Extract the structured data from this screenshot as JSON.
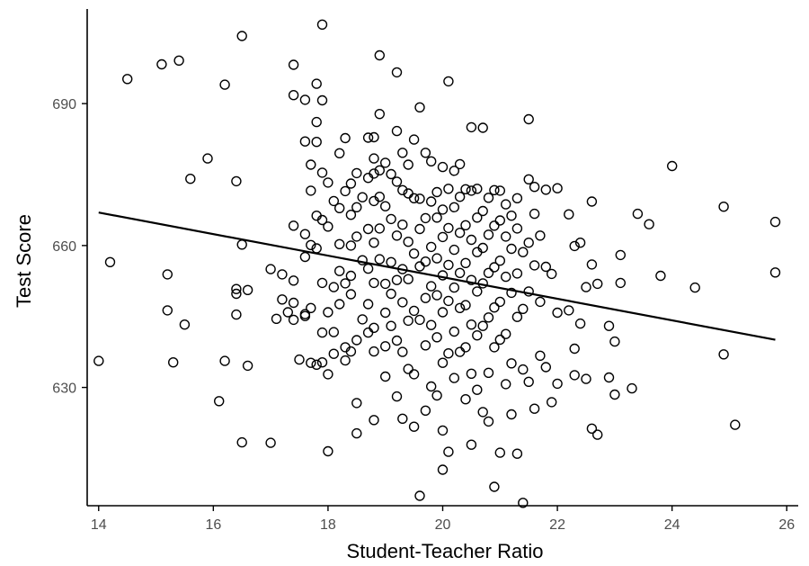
{
  "chart_data": {
    "type": "scatter",
    "xlabel": "Student-Teacher Ratio",
    "ylabel": "Test Score",
    "xlim": [
      13.8,
      26.2
    ],
    "ylim": [
      605,
      710
    ],
    "x_ticks": [
      14,
      16,
      18,
      20,
      22,
      24,
      26
    ],
    "y_ticks": [
      630,
      660,
      690
    ],
    "grid": false,
    "legend": "none",
    "colors": {
      "point_stroke": "#000000",
      "point_fill": "none",
      "line": "#000000",
      "axis": "#000000",
      "tick_label": "#4d4d4d"
    },
    "regression_line": {
      "intercept": 698.9,
      "slope": -2.28,
      "x_range": [
        14.0,
        25.8
      ]
    },
    "points": [
      [
        14.0,
        635.6
      ],
      [
        14.2,
        656.5
      ],
      [
        14.5,
        695.2
      ],
      [
        15.1,
        698.3
      ],
      [
        15.2,
        646.3
      ],
      [
        15.2,
        653.9
      ],
      [
        15.3,
        635.3
      ],
      [
        15.4,
        699.1
      ],
      [
        15.5,
        643.3
      ],
      [
        15.6,
        674.1
      ],
      [
        15.9,
        678.4
      ],
      [
        16.1,
        627.1
      ],
      [
        16.2,
        694.0
      ],
      [
        16.2,
        635.6
      ],
      [
        16.4,
        673.6
      ],
      [
        16.4,
        650.8
      ],
      [
        16.4,
        649.8
      ],
      [
        16.4,
        645.4
      ],
      [
        16.5,
        704.3
      ],
      [
        16.5,
        660.2
      ],
      [
        16.5,
        618.4
      ],
      [
        16.6,
        650.6
      ],
      [
        16.6,
        634.6
      ],
      [
        17.0,
        655.0
      ],
      [
        17.0,
        618.3
      ],
      [
        17.1,
        644.5
      ],
      [
        17.2,
        648.6
      ],
      [
        17.2,
        653.9
      ],
      [
        17.3,
        645.9
      ],
      [
        17.4,
        698.2
      ],
      [
        17.4,
        691.8
      ],
      [
        17.4,
        664.2
      ],
      [
        17.4,
        652.6
      ],
      [
        17.4,
        647.9
      ],
      [
        17.4,
        644.3
      ],
      [
        17.5,
        635.9
      ],
      [
        17.6,
        645.5
      ],
      [
        17.6,
        645.1
      ],
      [
        17.6,
        690.8
      ],
      [
        17.6,
        682.0
      ],
      [
        17.6,
        662.4
      ],
      [
        17.6,
        657.6
      ],
      [
        17.7,
        677.1
      ],
      [
        17.7,
        671.6
      ],
      [
        17.7,
        660.1
      ],
      [
        17.7,
        646.8
      ],
      [
        17.7,
        635.2
      ],
      [
        17.8,
        694.2
      ],
      [
        17.8,
        686.1
      ],
      [
        17.8,
        681.9
      ],
      [
        17.8,
        666.3
      ],
      [
        17.8,
        659.4
      ],
      [
        17.8,
        634.8
      ],
      [
        17.9,
        706.7
      ],
      [
        17.9,
        690.7
      ],
      [
        17.9,
        675.4
      ],
      [
        17.9,
        665.4
      ],
      [
        17.9,
        652.1
      ],
      [
        17.9,
        641.6
      ],
      [
        17.9,
        635.3
      ],
      [
        18.0,
        673.3
      ],
      [
        18.0,
        664.0
      ],
      [
        18.0,
        645.9
      ],
      [
        18.0,
        632.8
      ],
      [
        18.0,
        616.5
      ],
      [
        18.1,
        669.4
      ],
      [
        18.1,
        651.2
      ],
      [
        18.1,
        641.7
      ],
      [
        18.1,
        637.1
      ],
      [
        18.2,
        679.5
      ],
      [
        18.2,
        667.9
      ],
      [
        18.2,
        660.3
      ],
      [
        18.2,
        654.6
      ],
      [
        18.2,
        647.6
      ],
      [
        18.3,
        682.7
      ],
      [
        18.3,
        671.5
      ],
      [
        18.3,
        652.0
      ],
      [
        18.3,
        638.5
      ],
      [
        18.3,
        635.7
      ],
      [
        18.4,
        673.1
      ],
      [
        18.4,
        666.5
      ],
      [
        18.4,
        660.0
      ],
      [
        18.4,
        653.6
      ],
      [
        18.4,
        649.7
      ],
      [
        18.4,
        637.6
      ],
      [
        18.5,
        675.3
      ],
      [
        18.5,
        661.9
      ],
      [
        18.5,
        626.7
      ],
      [
        18.5,
        620.3
      ],
      [
        18.5,
        640.0
      ],
      [
        18.5,
        668.1
      ],
      [
        18.6,
        656.9
      ],
      [
        18.6,
        644.4
      ],
      [
        18.6,
        670.2
      ],
      [
        18.7,
        682.8
      ],
      [
        18.7,
        674.3
      ],
      [
        18.7,
        663.5
      ],
      [
        18.7,
        655.1
      ],
      [
        18.7,
        647.6
      ],
      [
        18.7,
        641.6
      ],
      [
        18.8,
        682.9
      ],
      [
        18.8,
        678.4
      ],
      [
        18.8,
        675.2
      ],
      [
        18.8,
        669.4
      ],
      [
        18.8,
        660.6
      ],
      [
        18.8,
        652.1
      ],
      [
        18.8,
        642.6
      ],
      [
        18.8,
        637.6
      ],
      [
        18.8,
        623.1
      ],
      [
        18.9,
        700.2
      ],
      [
        18.9,
        687.8
      ],
      [
        18.9,
        675.9
      ],
      [
        18.9,
        670.3
      ],
      [
        18.9,
        663.6
      ],
      [
        18.9,
        657.1
      ],
      [
        19.0,
        677.5
      ],
      [
        19.0,
        668.3
      ],
      [
        19.0,
        651.9
      ],
      [
        19.0,
        645.8
      ],
      [
        19.0,
        638.7
      ],
      [
        19.0,
        632.3
      ],
      [
        19.1,
        675.1
      ],
      [
        19.1,
        665.6
      ],
      [
        19.1,
        656.5
      ],
      [
        19.1,
        649.8
      ],
      [
        19.1,
        643.0
      ],
      [
        19.2,
        696.6
      ],
      [
        19.2,
        684.2
      ],
      [
        19.2,
        673.5
      ],
      [
        19.2,
        662.1
      ],
      [
        19.2,
        652.7
      ],
      [
        19.2,
        639.9
      ],
      [
        19.2,
        628.1
      ],
      [
        19.3,
        679.6
      ],
      [
        19.3,
        671.7
      ],
      [
        19.3,
        664.4
      ],
      [
        19.3,
        655.0
      ],
      [
        19.3,
        648.0
      ],
      [
        19.3,
        637.5
      ],
      [
        19.3,
        623.4
      ],
      [
        19.4,
        677.1
      ],
      [
        19.4,
        671.0
      ],
      [
        19.4,
        660.8
      ],
      [
        19.4,
        652.9
      ],
      [
        19.4,
        644.1
      ],
      [
        19.4,
        633.9
      ],
      [
        19.5,
        682.4
      ],
      [
        19.5,
        670.0
      ],
      [
        19.5,
        658.3
      ],
      [
        19.5,
        646.2
      ],
      [
        19.5,
        632.8
      ],
      [
        19.5,
        621.7
      ],
      [
        19.6,
        689.2
      ],
      [
        19.6,
        669.9
      ],
      [
        19.6,
        663.5
      ],
      [
        19.6,
        655.6
      ],
      [
        19.6,
        644.3
      ],
      [
        19.6,
        607.1
      ],
      [
        19.7,
        679.6
      ],
      [
        19.7,
        665.8
      ],
      [
        19.7,
        656.6
      ],
      [
        19.7,
        648.9
      ],
      [
        19.7,
        638.9
      ],
      [
        19.7,
        625.1
      ],
      [
        19.8,
        677.8
      ],
      [
        19.8,
        669.3
      ],
      [
        19.8,
        659.7
      ],
      [
        19.8,
        651.4
      ],
      [
        19.8,
        643.2
      ],
      [
        19.8,
        630.2
      ],
      [
        19.9,
        671.3
      ],
      [
        19.9,
        665.9
      ],
      [
        19.9,
        657.3
      ],
      [
        19.9,
        649.5
      ],
      [
        19.9,
        640.6
      ],
      [
        19.9,
        628.3
      ],
      [
        20.0,
        676.6
      ],
      [
        20.0,
        667.6
      ],
      [
        20.0,
        661.8
      ],
      [
        20.0,
        653.7
      ],
      [
        20.0,
        645.9
      ],
      [
        20.0,
        635.2
      ],
      [
        20.0,
        620.9
      ],
      [
        20.0,
        612.6
      ],
      [
        20.1,
        694.7
      ],
      [
        20.1,
        672.0
      ],
      [
        20.1,
        663.7
      ],
      [
        20.1,
        655.9
      ],
      [
        20.1,
        648.3
      ],
      [
        20.1,
        637.2
      ],
      [
        20.1,
        616.4
      ],
      [
        20.2,
        675.8
      ],
      [
        20.2,
        668.1
      ],
      [
        20.2,
        659.1
      ],
      [
        20.2,
        651.1
      ],
      [
        20.2,
        641.8
      ],
      [
        20.2,
        632.0
      ],
      [
        20.3,
        677.2
      ],
      [
        20.3,
        670.3
      ],
      [
        20.3,
        662.7
      ],
      [
        20.3,
        654.2
      ],
      [
        20.3,
        646.8
      ],
      [
        20.3,
        637.5
      ],
      [
        20.4,
        671.9
      ],
      [
        20.4,
        664.3
      ],
      [
        20.4,
        656.3
      ],
      [
        20.4,
        647.4
      ],
      [
        20.4,
        638.5
      ],
      [
        20.4,
        627.5
      ],
      [
        20.5,
        685.0
      ],
      [
        20.5,
        671.6
      ],
      [
        20.5,
        661.2
      ],
      [
        20.5,
        652.7
      ],
      [
        20.5,
        643.3
      ],
      [
        20.5,
        632.9
      ],
      [
        20.5,
        617.9
      ],
      [
        20.6,
        672.0
      ],
      [
        20.6,
        665.9
      ],
      [
        20.6,
        658.6
      ],
      [
        20.6,
        650.3
      ],
      [
        20.6,
        641.0
      ],
      [
        20.6,
        629.5
      ],
      [
        20.7,
        684.9
      ],
      [
        20.7,
        667.3
      ],
      [
        20.7,
        659.5
      ],
      [
        20.7,
        652.0
      ],
      [
        20.7,
        643.0
      ],
      [
        20.7,
        624.8
      ],
      [
        20.8,
        670.1
      ],
      [
        20.8,
        662.3
      ],
      [
        20.8,
        654.2
      ],
      [
        20.8,
        644.8
      ],
      [
        20.8,
        633.1
      ],
      [
        20.8,
        622.8
      ],
      [
        20.9,
        671.7
      ],
      [
        20.9,
        664.2
      ],
      [
        20.9,
        655.4
      ],
      [
        20.9,
        646.9
      ],
      [
        20.9,
        638.5
      ],
      [
        20.9,
        609.0
      ],
      [
        21.0,
        671.6
      ],
      [
        21.0,
        665.3
      ],
      [
        21.0,
        656.8
      ],
      [
        21.0,
        648.1
      ],
      [
        21.0,
        640.1
      ],
      [
        21.0,
        616.2
      ],
      [
        21.1,
        668.7
      ],
      [
        21.1,
        661.9
      ],
      [
        21.1,
        653.4
      ],
      [
        21.1,
        641.3
      ],
      [
        21.1,
        630.7
      ],
      [
        21.2,
        666.3
      ],
      [
        21.2,
        659.3
      ],
      [
        21.2,
        650.0
      ],
      [
        21.2,
        635.1
      ],
      [
        21.2,
        624.3
      ],
      [
        21.3,
        670.0
      ],
      [
        21.3,
        663.6
      ],
      [
        21.3,
        654.1
      ],
      [
        21.3,
        644.9
      ],
      [
        21.3,
        616.0
      ],
      [
        21.4,
        658.6
      ],
      [
        21.4,
        646.6
      ],
      [
        21.4,
        633.8
      ],
      [
        21.4,
        605.6
      ],
      [
        21.5,
        686.7
      ],
      [
        21.5,
        674.0
      ],
      [
        21.5,
        660.6
      ],
      [
        21.5,
        650.3
      ],
      [
        21.5,
        631.2
      ],
      [
        21.6,
        672.4
      ],
      [
        21.6,
        666.7
      ],
      [
        21.6,
        655.8
      ],
      [
        21.6,
        625.5
      ],
      [
        21.7,
        662.1
      ],
      [
        21.7,
        648.1
      ],
      [
        21.7,
        636.7
      ],
      [
        21.8,
        671.8
      ],
      [
        21.8,
        655.5
      ],
      [
        21.8,
        634.3
      ],
      [
        21.9,
        654.0
      ],
      [
        21.9,
        626.9
      ],
      [
        22.0,
        672.1
      ],
      [
        22.0,
        645.8
      ],
      [
        22.0,
        630.8
      ],
      [
        22.2,
        666.6
      ],
      [
        22.2,
        646.3
      ],
      [
        22.3,
        659.9
      ],
      [
        22.3,
        638.2
      ],
      [
        22.3,
        632.6
      ],
      [
        22.4,
        660.6
      ],
      [
        22.4,
        643.5
      ],
      [
        22.5,
        651.2
      ],
      [
        22.5,
        631.8
      ],
      [
        22.6,
        669.3
      ],
      [
        22.6,
        656.0
      ],
      [
        22.6,
        621.3
      ],
      [
        22.7,
        651.9
      ],
      [
        22.7,
        620.0
      ],
      [
        22.9,
        643.0
      ],
      [
        22.9,
        632.1
      ],
      [
        23.0,
        639.7
      ],
      [
        23.0,
        628.5
      ],
      [
        23.1,
        652.1
      ],
      [
        23.1,
        658.0
      ],
      [
        23.3,
        629.8
      ],
      [
        23.4,
        666.7
      ],
      [
        23.6,
        664.5
      ],
      [
        23.8,
        653.6
      ],
      [
        24.0,
        676.8
      ],
      [
        24.4,
        651.1
      ],
      [
        24.9,
        668.2
      ],
      [
        24.9,
        637.0
      ],
      [
        25.1,
        622.1
      ],
      [
        25.8,
        665.0
      ],
      [
        25.8,
        654.3
      ]
    ]
  }
}
